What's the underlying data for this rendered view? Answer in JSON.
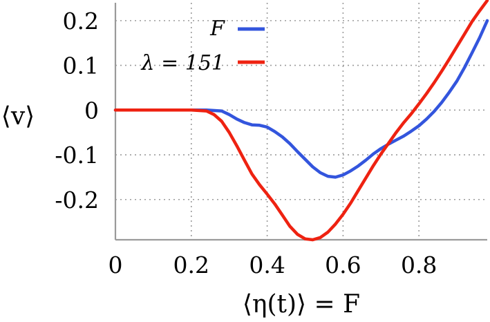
{
  "chart_data": {
    "type": "line",
    "xlabel": "⟨η(t)⟩ = F",
    "ylabel": "⟨v⟩",
    "xlim": [
      0,
      0.98
    ],
    "ylim": [
      -0.29,
      0.24
    ],
    "xticks": [
      0,
      0.2,
      0.4,
      0.6,
      0.8
    ],
    "xtick_labels": [
      "0",
      "0.2",
      "0.4",
      "0.6",
      "0.8"
    ],
    "yticks": [
      -0.2,
      -0.1,
      0,
      0.1,
      0.2
    ],
    "ytick_labels": [
      "-0.2",
      "-0.1",
      "0",
      "0.1",
      "0.2"
    ],
    "grid": true,
    "legend_position": "top-center",
    "series": [
      {
        "name": "F",
        "color": "#3355dd",
        "x": [
          0,
          0.05,
          0.1,
          0.15,
          0.2,
          0.24,
          0.28,
          0.3,
          0.32,
          0.34,
          0.36,
          0.38,
          0.4,
          0.42,
          0.44,
          0.46,
          0.48,
          0.5,
          0.52,
          0.54,
          0.56,
          0.58,
          0.6,
          0.62,
          0.64,
          0.66,
          0.68,
          0.7,
          0.72,
          0.74,
          0.76,
          0.78,
          0.8,
          0.82,
          0.84,
          0.86,
          0.88,
          0.9,
          0.92,
          0.94,
          0.96,
          0.98
        ],
        "y": [
          0,
          0,
          0,
          0,
          0,
          0,
          -0.002,
          -0.01,
          -0.02,
          -0.028,
          -0.033,
          -0.034,
          -0.038,
          -0.048,
          -0.06,
          -0.075,
          -0.093,
          -0.11,
          -0.127,
          -0.14,
          -0.148,
          -0.15,
          -0.145,
          -0.136,
          -0.125,
          -0.112,
          -0.098,
          -0.086,
          -0.076,
          -0.067,
          -0.058,
          -0.047,
          -0.035,
          -0.02,
          -0.003,
          0.017,
          0.04,
          0.065,
          0.095,
          0.128,
          0.162,
          0.2
        ]
      },
      {
        "name": "λ = 151",
        "color": "#ee2211",
        "x": [
          0,
          0.05,
          0.1,
          0.15,
          0.2,
          0.24,
          0.26,
          0.28,
          0.3,
          0.32,
          0.34,
          0.36,
          0.38,
          0.4,
          0.42,
          0.44,
          0.46,
          0.48,
          0.5,
          0.52,
          0.54,
          0.56,
          0.58,
          0.6,
          0.62,
          0.64,
          0.66,
          0.68,
          0.7,
          0.72,
          0.74,
          0.76,
          0.78,
          0.8,
          0.82,
          0.84,
          0.86,
          0.88,
          0.9,
          0.92,
          0.94,
          0.96,
          0.98
        ],
        "y": [
          0,
          0,
          0,
          0,
          0,
          -0.002,
          -0.01,
          -0.025,
          -0.05,
          -0.08,
          -0.112,
          -0.143,
          -0.167,
          -0.188,
          -0.21,
          -0.235,
          -0.26,
          -0.278,
          -0.288,
          -0.29,
          -0.285,
          -0.273,
          -0.255,
          -0.233,
          -0.208,
          -0.18,
          -0.152,
          -0.124,
          -0.098,
          -0.074,
          -0.05,
          -0.028,
          -0.008,
          0.014,
          0.037,
          0.061,
          0.087,
          0.114,
          0.142,
          0.17,
          0.198,
          0.222,
          0.245
        ]
      }
    ]
  }
}
